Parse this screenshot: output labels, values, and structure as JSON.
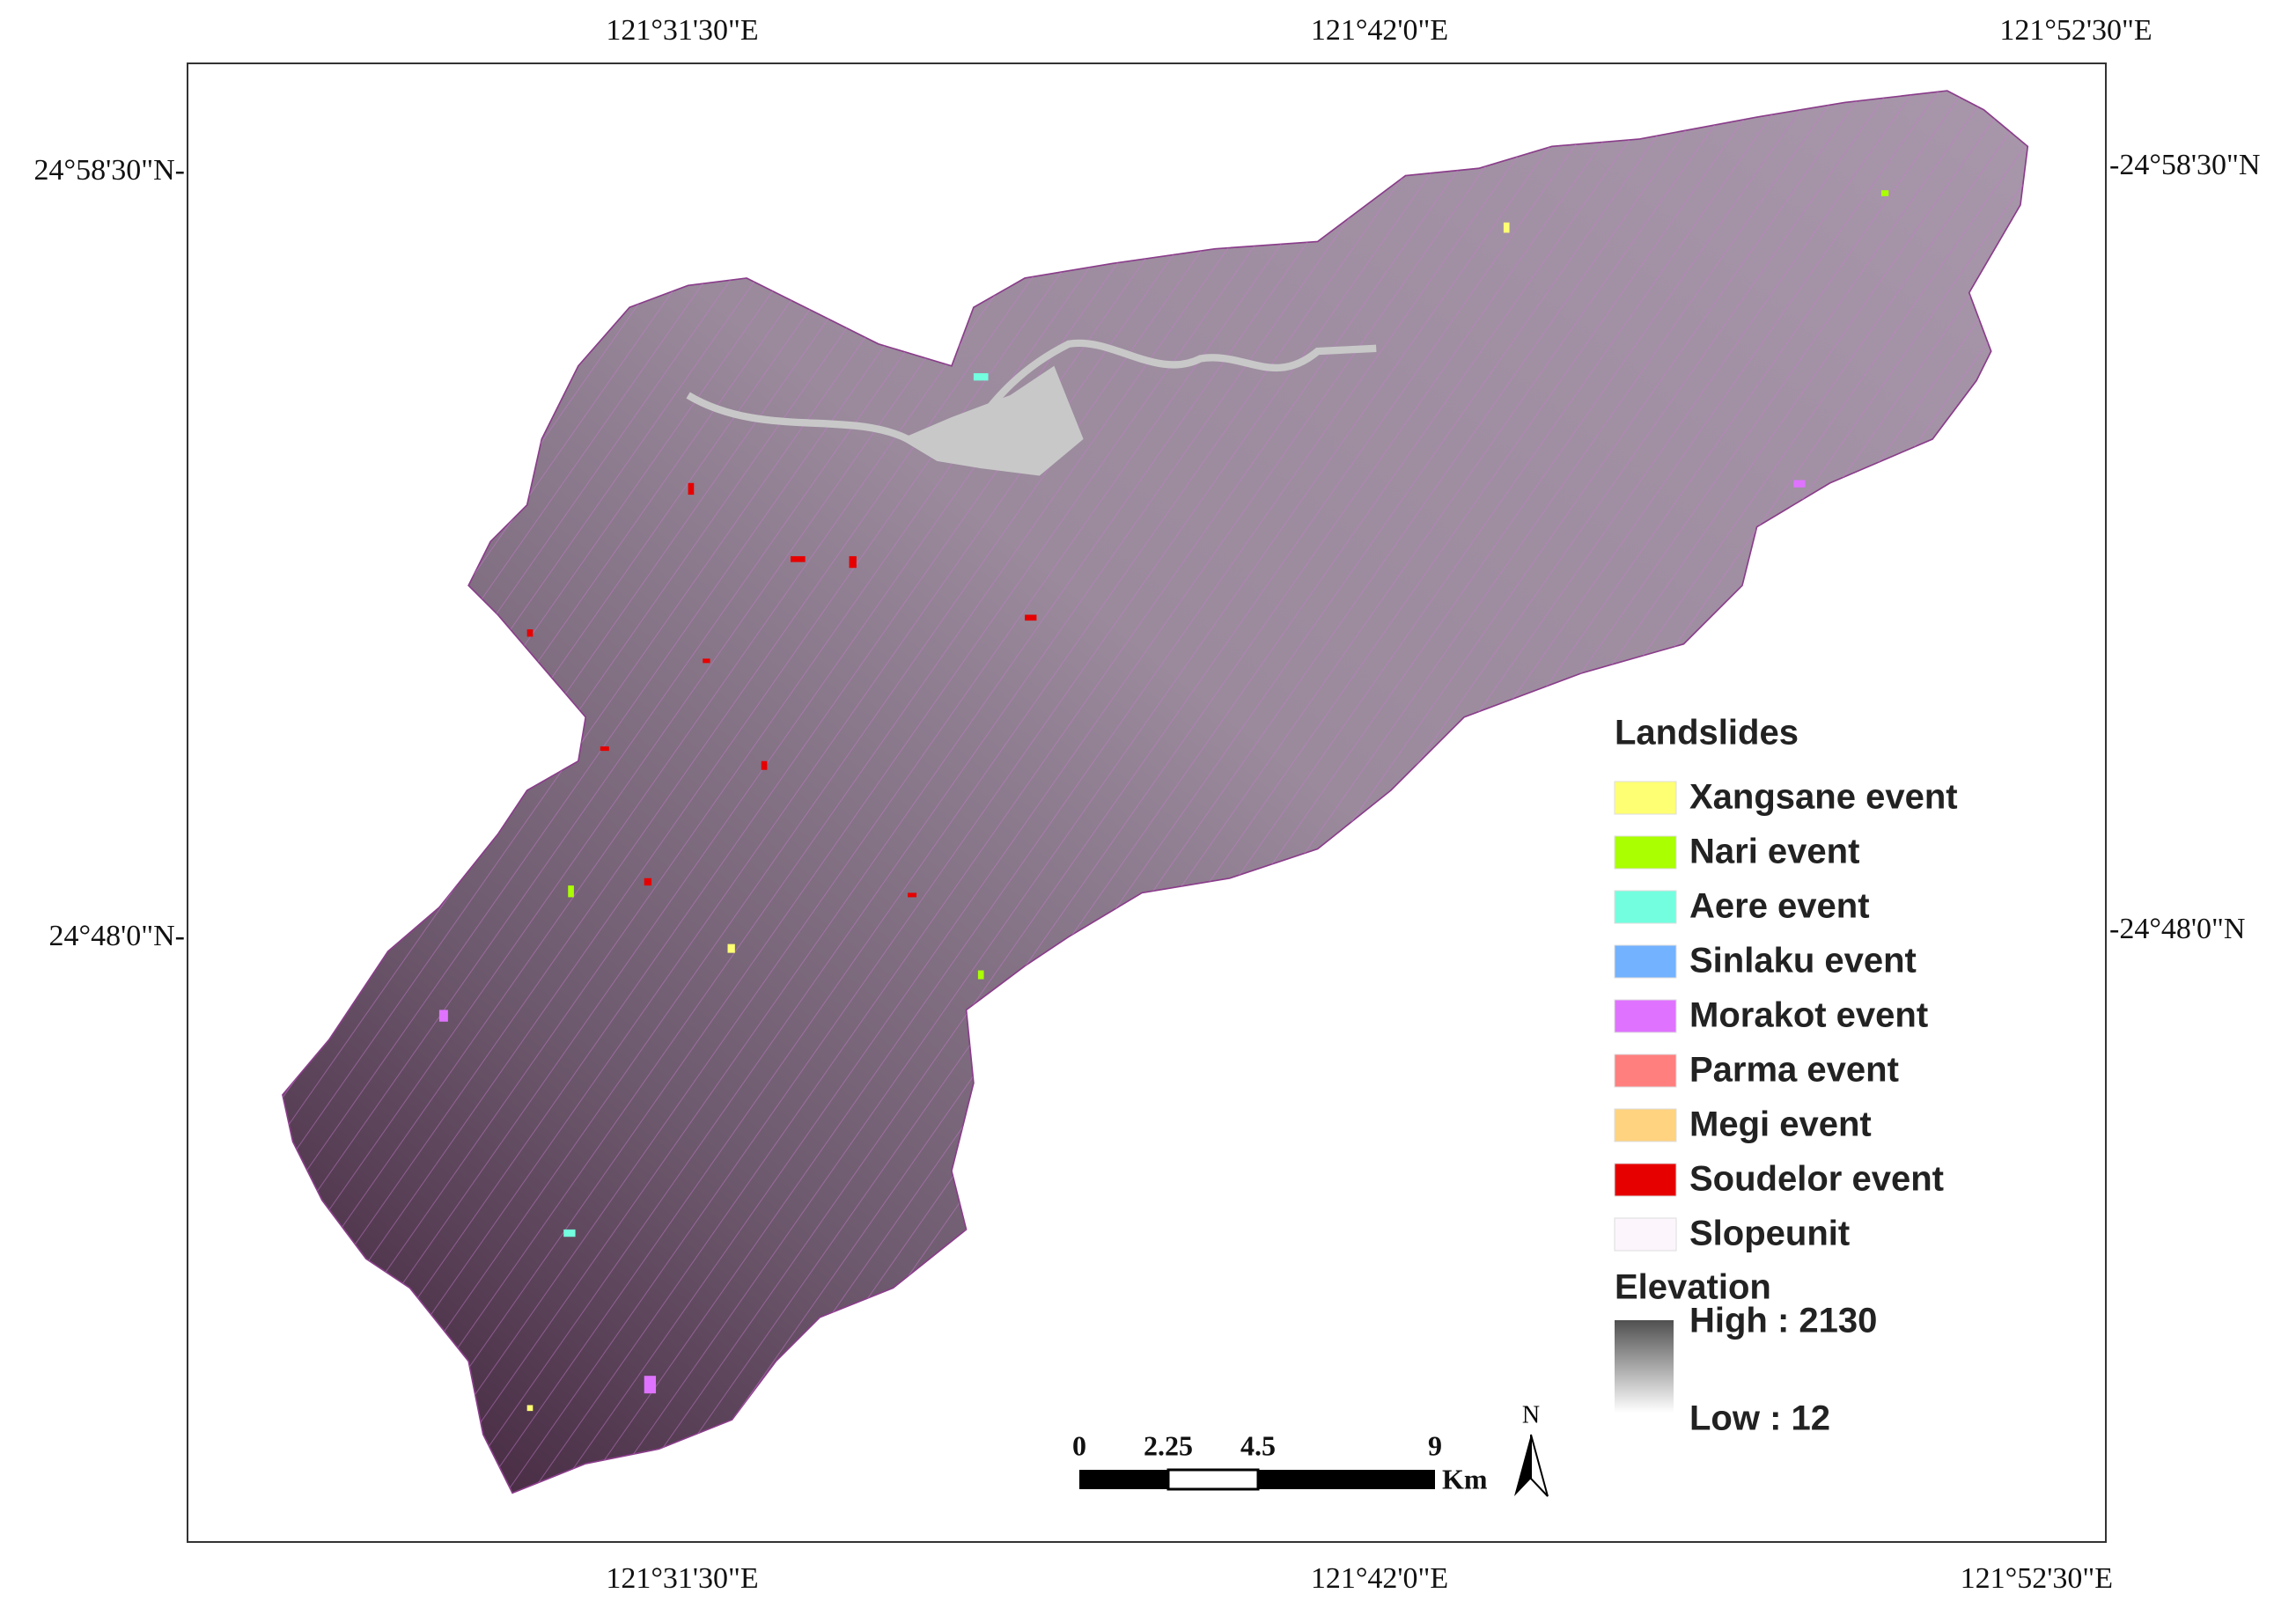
{
  "frame_labels": {
    "top": [
      "121°31'30\"E",
      "121°42'0\"E",
      "121°52'30\"E"
    ],
    "bottom": [
      "121°31'30\"E",
      "121°42'0\"E",
      "121°52'30\"E"
    ],
    "left": [
      "24°58'30\"N-",
      "24°48'0\"N-"
    ],
    "right": [
      "-24°58'30\"N",
      "-24°48'0\"N"
    ]
  },
  "legend": {
    "title": "Landslides",
    "items": [
      {
        "label": "Xangsane event",
        "color": "#ffff73"
      },
      {
        "label": "Nari event",
        "color": "#aaff00"
      },
      {
        "label": "Aere event",
        "color": "#73ffdf"
      },
      {
        "label": "Sinlaku event",
        "color": "#73b2ff"
      },
      {
        "label": "Morakot event",
        "color": "#df73ff"
      },
      {
        "label": "Parma event",
        "color": "#ff7f7f"
      },
      {
        "label": "Megi event",
        "color": "#ffd37f"
      },
      {
        "label": "Soudelor event",
        "color": "#e60000"
      },
      {
        "label": "Slopeunit",
        "color": "#fcf5fc"
      }
    ],
    "elevation_title": "Elevation",
    "high": "High : 2130",
    "low": "Low : 12"
  },
  "scale_bar": {
    "labels": [
      "0",
      "2.25",
      "4.5",
      "9"
    ],
    "unit": "Km"
  },
  "north_arrow": "N"
}
